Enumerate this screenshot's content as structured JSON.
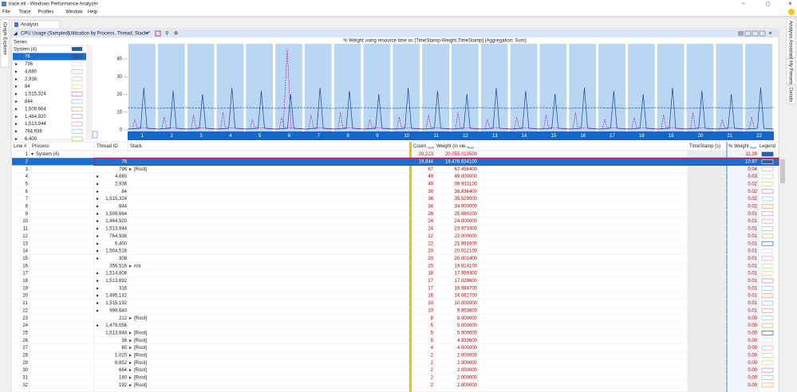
{
  "window": {
    "title": "trace.etl - Windows Performance Analyzer",
    "menu": [
      "File",
      "Trace",
      "Profiles",
      "Window",
      "Help"
    ]
  },
  "side_tabs": {
    "left": "Graph Explorer",
    "right": [
      "Analysis Assistant",
      "My Presets",
      "Details"
    ]
  },
  "tab": "Analysis",
  "panel": {
    "name": "CPU Usage (Sampled)",
    "preset": "Utilization by Process, Thread, Stack *"
  },
  "series": {
    "label": "Series",
    "group": "System (4)",
    "items": [
      "76",
      "796",
      "4,680",
      "2,936",
      "84",
      "1,515,324",
      "844",
      "1,509,664",
      "1,464,920",
      "1,513,944",
      "764,936",
      "6,400"
    ]
  },
  "graph": {
    "title": "% Weight using resource time as [TimeStamp-Weight,TimeStamp] (Aggregation: Sum)",
    "yticks": [
      "0",
      "10",
      "20",
      "30",
      "40"
    ],
    "xticks": [
      "1",
      "2",
      "3",
      "4",
      "5",
      "6",
      "7",
      "8",
      "9",
      "10",
      "11",
      "12",
      "13",
      "14",
      "15",
      "16",
      "17",
      "18",
      "19",
      "20",
      "21",
      "22"
    ]
  },
  "table": {
    "columns": [
      "Line #",
      "Process",
      "Thread ID",
      "Stack",
      "Count",
      "Sum",
      "Weight (in vie...",
      "Sum",
      "TimeStamp (s)",
      "% Weight",
      "Sum",
      "Legend"
    ],
    "rows": [
      {
        "line": "1",
        "process": "System (4)",
        "count": "20,223",
        "weight": "20,055.013500",
        "pct": "11.29"
      },
      {
        "line": "2",
        "thread": "76",
        "count": "19,644",
        "weight": "19,476.634100",
        "pct": "10.97"
      },
      {
        "line": "3",
        "thread": "796",
        "stack": "[Root]",
        "count": "67",
        "weight": "67.456400",
        "pct": "0.04"
      },
      {
        "line": "4",
        "thread": "4,680",
        "count": "49",
        "weight": "49.000000",
        "pct": "0.03"
      },
      {
        "line": "5",
        "thread": "2,936",
        "count": "40",
        "weight": "39.933100",
        "pct": "0.02"
      },
      {
        "line": "6",
        "thread": "84",
        "count": "39",
        "weight": "38.836400",
        "pct": "0.02"
      },
      {
        "line": "7",
        "thread": "1,515,324",
        "count": "36",
        "weight": "35.529000",
        "pct": "0.02"
      },
      {
        "line": "8",
        "thread": "844",
        "count": "34",
        "weight": "34.000000",
        "pct": "0.02"
      },
      {
        "line": "9",
        "thread": "1,509,664",
        "count": "26",
        "weight": "25.980200",
        "pct": "0.01"
      },
      {
        "line": "10",
        "thread": "1,464,920",
        "count": "24",
        "weight": "24.000000",
        "pct": "0.01"
      },
      {
        "line": "11",
        "thread": "1,513,944",
        "count": "24",
        "weight": "23.973300",
        "pct": "0.01"
      },
      {
        "line": "12",
        "thread": "764,936",
        "count": "22",
        "weight": "22.000000",
        "pct": "0.01"
      },
      {
        "line": "13",
        "thread": "6,400",
        "count": "22",
        "weight": "21.991600",
        "pct": "0.01"
      },
      {
        "line": "14",
        "thread": "1,504,516",
        "count": "20",
        "weight": "20.012100",
        "pct": "0.01"
      },
      {
        "line": "15",
        "thread": "308",
        "count": "20",
        "weight": "20.001400",
        "pct": "0.01"
      },
      {
        "line": "16",
        "thread": "356,516",
        "stack": "n/a",
        "count": "20",
        "weight": "19.814100",
        "pct": "0.01"
      },
      {
        "line": "17",
        "thread": "1,514,808",
        "count": "18",
        "weight": "17.959300",
        "pct": "0.01"
      },
      {
        "line": "18",
        "thread": "1,513,692",
        "count": "17",
        "weight": "17.028600",
        "pct": "0.01"
      },
      {
        "line": "19",
        "thread": "316",
        "count": "17",
        "weight": "16.988700",
        "pct": "0.01"
      },
      {
        "line": "20",
        "thread": "1,495,132",
        "count": "16",
        "weight": "16.062700",
        "pct": "0.01"
      },
      {
        "line": "21",
        "thread": "1,515,192",
        "count": "10",
        "weight": "10.000000",
        "pct": "0.01"
      },
      {
        "line": "22",
        "thread": "990,640",
        "count": "10",
        "weight": "9.853600",
        "pct": "0.01"
      },
      {
        "line": "23",
        "thread": "212",
        "stack": "[Root]",
        "count": "8",
        "weight": "8.000000",
        "pct": "0.00"
      },
      {
        "line": "24",
        "thread": "1,479,056",
        "count": "5",
        "weight": "5.000000",
        "pct": "0.00"
      },
      {
        "line": "25",
        "thread": "1,513,948",
        "stack": "[Root]",
        "count": "5",
        "weight": "5.000000",
        "pct": "0.00"
      },
      {
        "line": "26",
        "thread": "36",
        "stack": "[Root]",
        "count": "5",
        "weight": "4.933600",
        "pct": "0.00"
      },
      {
        "line": "27",
        "thread": "80",
        "stack": "[Root]",
        "count": "4",
        "weight": "4.000000",
        "pct": "0.00"
      },
      {
        "line": "28",
        "thread": "1,020",
        "stack": "[Root]",
        "count": "2",
        "weight": "2.000000",
        "pct": "0.00"
      },
      {
        "line": "29",
        "thread": "6,852",
        "stack": "[Root]",
        "count": "2",
        "weight": "2.000000",
        "pct": "0.00"
      },
      {
        "line": "30",
        "thread": "684",
        "stack": "[Root]",
        "count": "2",
        "weight": "2.000000",
        "pct": "0.00"
      },
      {
        "line": "31",
        "thread": "180",
        "stack": "[Root]",
        "count": "2",
        "weight": "2.000000",
        "pct": "0.00"
      },
      {
        "line": "32",
        "thread": "192",
        "stack": "[Root]",
        "count": "2",
        "weight": "2.000000",
        "pct": "0.00"
      }
    ]
  }
}
